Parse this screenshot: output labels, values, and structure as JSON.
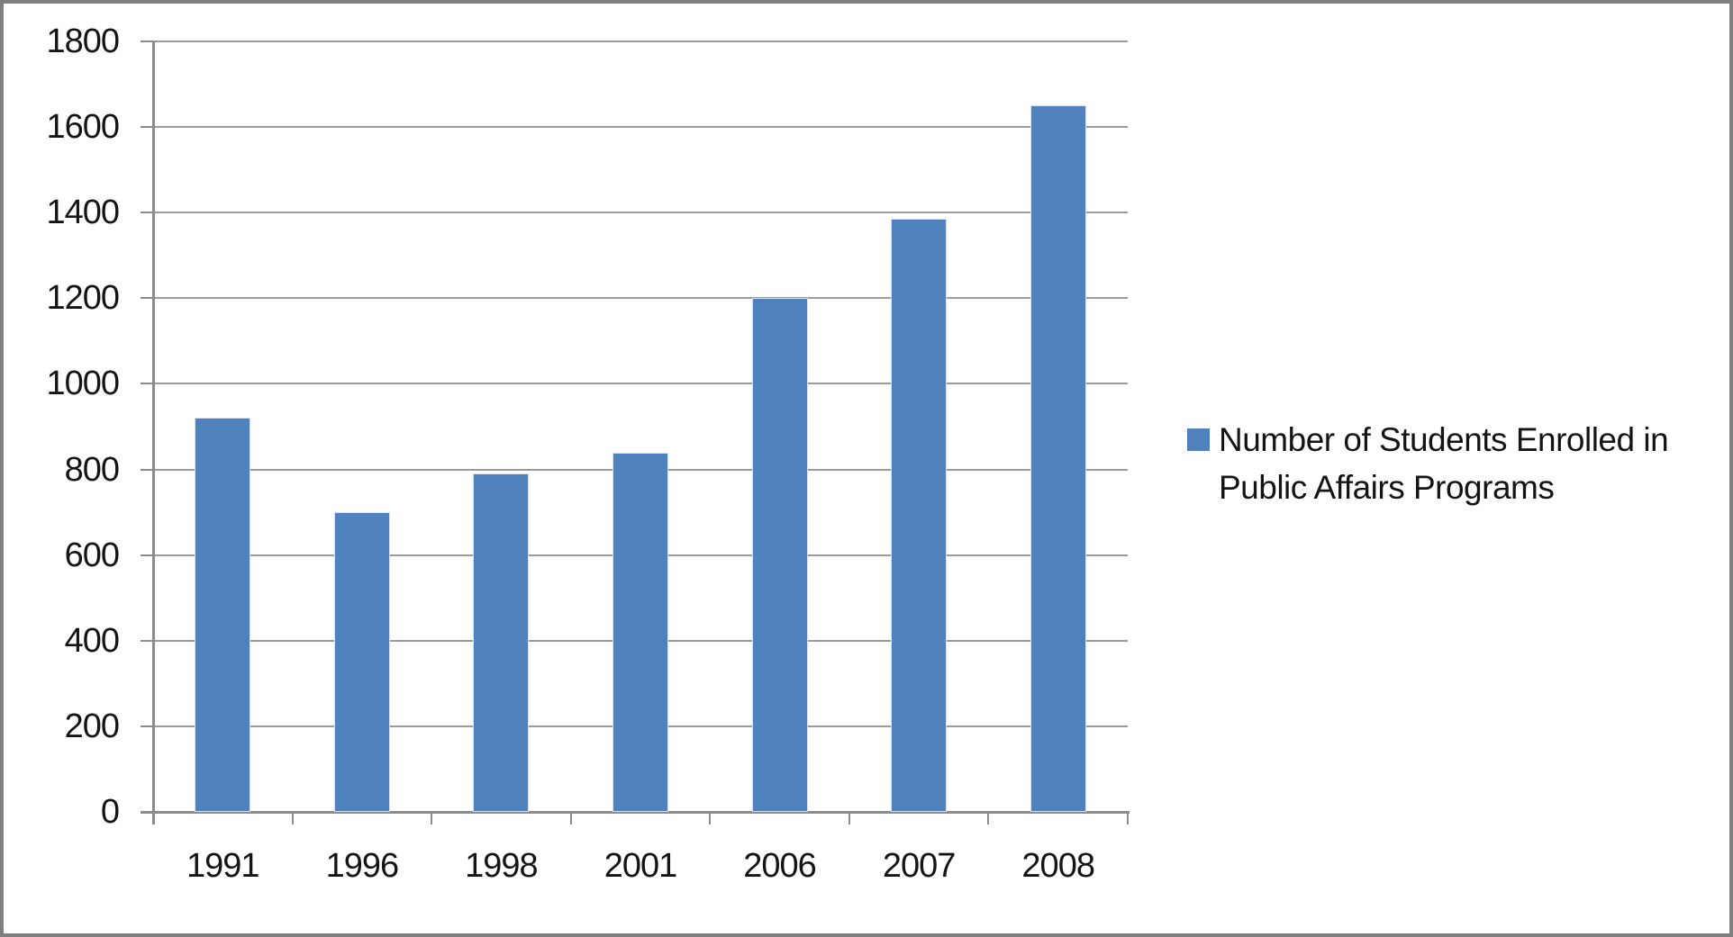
{
  "chart_data": {
    "type": "bar",
    "categories": [
      "1991",
      "1996",
      "1998",
      "2001",
      "2006",
      "2007",
      "2008"
    ],
    "values": [
      920,
      700,
      790,
      840,
      1200,
      1385,
      1650
    ],
    "series_name": "Number of Students Enrolled in Public Affairs Programs",
    "title": "",
    "xlabel": "",
    "ylabel": "",
    "ylim": [
      0,
      1800
    ],
    "ytick_step": 200,
    "yticks": [
      0,
      200,
      400,
      600,
      800,
      1000,
      1200,
      1400,
      1600,
      1800
    ],
    "grid": "horizontal",
    "legend_position": "right",
    "colors": {
      "bar_fill": "#4f81bd",
      "bar_edge": "#d7e2f1",
      "gridline": "#9b9b9b",
      "axis": "#8c8c8c",
      "text": "#141414",
      "frame_border": "#7f7f7f",
      "background": "#ffffff"
    }
  }
}
